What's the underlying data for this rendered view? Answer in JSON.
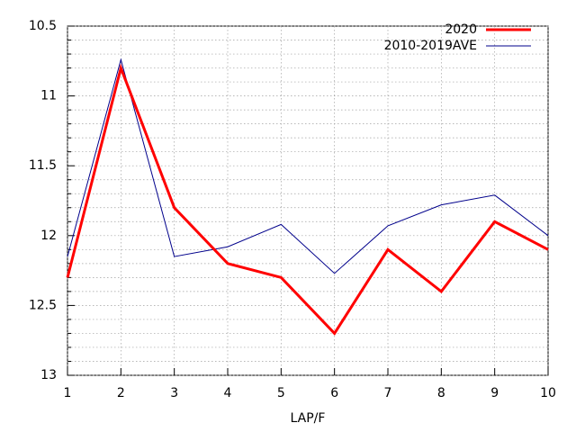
{
  "chart_data": {
    "type": "line",
    "xlabel": "LAP/F",
    "x": [
      1,
      2,
      3,
      4,
      5,
      6,
      7,
      8,
      9,
      10
    ],
    "xlim": [
      1,
      10
    ],
    "xticks": [
      1,
      2,
      3,
      4,
      5,
      6,
      7,
      8,
      9,
      10
    ],
    "ylim": [
      10.5,
      13
    ],
    "y_inverted": true,
    "yticks": [
      10.5,
      11,
      11.5,
      12,
      12.5,
      13
    ],
    "y_minor_ticks": [
      10.6,
      10.7,
      10.8,
      10.9,
      11.1,
      11.2,
      11.3,
      11.4,
      11.6,
      11.7,
      11.8,
      11.9,
      12.1,
      12.2,
      12.3,
      12.4,
      12.6,
      12.7,
      12.8,
      12.9
    ],
    "grid": true,
    "legend": "top-right",
    "series": [
      {
        "name": "2020",
        "color": "#ff0000",
        "width": 3,
        "values": [
          12.3,
          10.8,
          11.8,
          12.2,
          12.3,
          12.7,
          12.1,
          12.4,
          11.9,
          12.1
        ]
      },
      {
        "name": "2010-2019AVE",
        "color": "#00008b",
        "width": 1,
        "values": [
          12.15,
          10.74,
          12.15,
          12.08,
          11.92,
          12.27,
          11.93,
          11.78,
          11.71,
          12.0
        ]
      }
    ]
  }
}
